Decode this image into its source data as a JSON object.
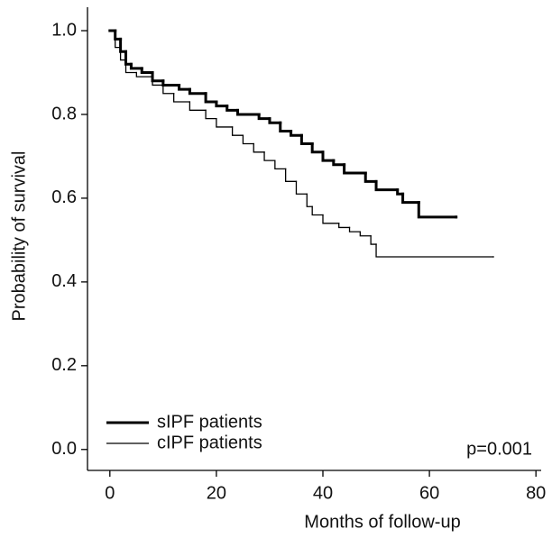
{
  "chart_data": {
    "type": "step",
    "xlabel": "Months of follow-up",
    "ylabel": "Probability of survival",
    "annotation": "p=0.001",
    "xlim": [
      -4.2,
      82
    ],
    "ylim": [
      -0.05,
      1.056
    ],
    "xticks": [
      0,
      20,
      40,
      60,
      80
    ],
    "yticks": [
      {
        "value": 0,
        "label": "0.0"
      },
      {
        "value": 0.2,
        "label": "0.2"
      },
      {
        "value": 0.4,
        "label": "0.4"
      },
      {
        "value": 0.6,
        "label": "0.6"
      },
      {
        "value": 0.8,
        "label": "0.8"
      },
      {
        "value": 1,
        "label": "1.0"
      }
    ],
    "legend": "lower left",
    "series": [
      {
        "name": "sIPF patients",
        "color": "#000000",
        "width": 3,
        "x": [
          0,
          1,
          2,
          3,
          4,
          6,
          8,
          10,
          13,
          15,
          18,
          20,
          22,
          24,
          28,
          30,
          32,
          34,
          36,
          38,
          40,
          42,
          44,
          48,
          50,
          54,
          55,
          58,
          65
        ],
        "values": [
          1.0,
          0.98,
          0.95,
          0.92,
          0.91,
          0.9,
          0.88,
          0.87,
          0.86,
          0.85,
          0.83,
          0.82,
          0.81,
          0.8,
          0.79,
          0.78,
          0.76,
          0.75,
          0.73,
          0.71,
          0.69,
          0.68,
          0.66,
          0.64,
          0.62,
          0.61,
          0.59,
          0.555,
          0.555
        ]
      },
      {
        "name": "cIPF patients",
        "color": "#000000",
        "width": 1.3,
        "x": [
          0,
          1,
          2,
          3,
          5,
          8,
          10,
          12,
          15,
          18,
          20,
          23,
          25,
          27,
          29,
          31,
          33,
          35,
          37,
          38,
          40,
          43,
          45,
          47,
          49,
          50,
          72
        ],
        "values": [
          1.0,
          0.96,
          0.93,
          0.9,
          0.89,
          0.87,
          0.85,
          0.83,
          0.81,
          0.79,
          0.77,
          0.75,
          0.73,
          0.71,
          0.69,
          0.67,
          0.64,
          0.61,
          0.58,
          0.56,
          0.54,
          0.53,
          0.52,
          0.51,
          0.49,
          0.46,
          0.46
        ]
      }
    ]
  }
}
